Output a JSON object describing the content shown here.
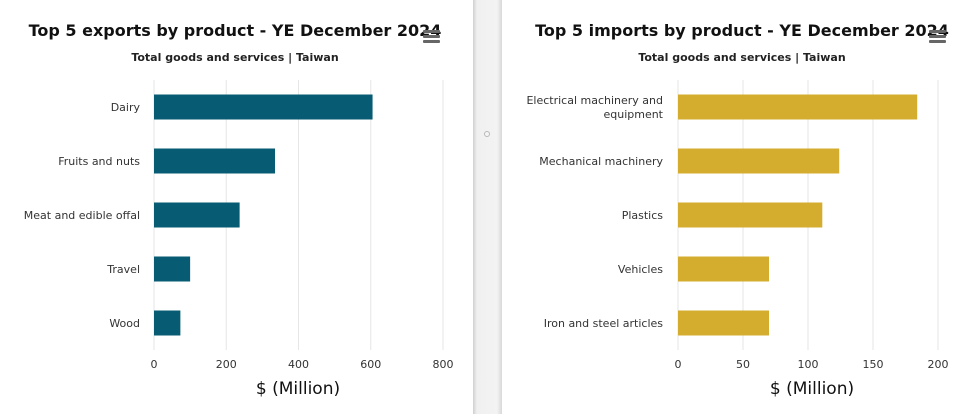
{
  "chart_data": [
    {
      "type": "bar",
      "orientation": "horizontal",
      "title": "Top 5 exports by product - YE December 2024",
      "subtitle": "Total goods and services | Taiwan",
      "categories": [
        [
          "Dairy"
        ],
        [
          "Fruits and nuts"
        ],
        [
          "Meat and edible offal"
        ],
        [
          "Travel"
        ],
        [
          "Wood"
        ]
      ],
      "values": [
        605,
        335,
        237,
        100,
        73
      ],
      "xlabel": "$ (Million)",
      "xlim": [
        0,
        800
      ],
      "ticks": [
        0,
        200,
        400,
        600,
        800
      ],
      "grid": true,
      "bar_color": "#075b73"
    },
    {
      "type": "bar",
      "orientation": "horizontal",
      "title": "Top 5 imports by product - YE December 2024",
      "subtitle": "Total goods and services | Taiwan",
      "categories": [
        [
          "Electrical machinery and",
          "equipment"
        ],
        [
          "Mechanical machinery"
        ],
        [
          "Plastics"
        ],
        [
          "Vehicles"
        ],
        [
          "Iron and steel articles"
        ]
      ],
      "values": [
        184,
        124,
        111,
        70,
        70
      ],
      "xlabel": "$ (Million)",
      "xlim": [
        0,
        200
      ],
      "ticks": [
        0,
        50,
        100,
        150,
        200
      ],
      "grid": true,
      "bar_color": "#d4ac2e"
    }
  ]
}
